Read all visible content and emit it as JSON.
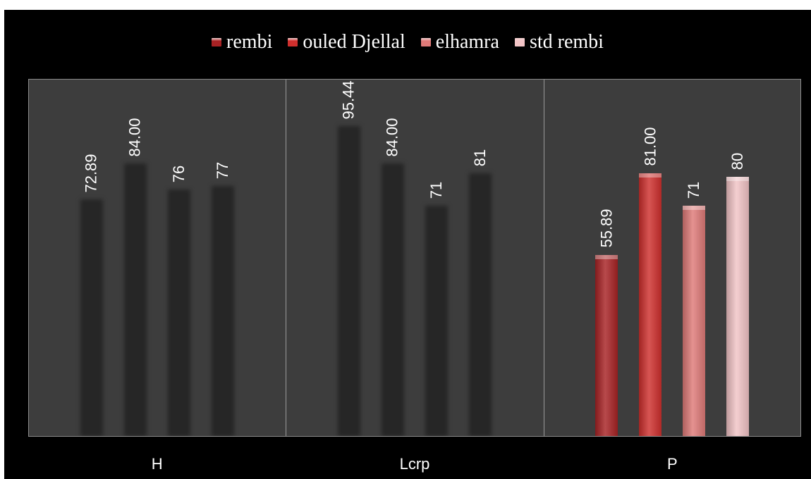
{
  "chart_data": {
    "type": "bar",
    "title": "",
    "xlabel": "",
    "ylabel": "",
    "categories": [
      "H",
      "Lcrp",
      "P"
    ],
    "series": [
      {
        "name": "rembi",
        "values": [
          72.89,
          95.44,
          55.89
        ],
        "labels": [
          "72.89",
          "95.44",
          "55.89"
        ],
        "color": "#a82224"
      },
      {
        "name": "ouled Djellal",
        "values": [
          84.0,
          84.0,
          81.0
        ],
        "labels": [
          "84.00",
          "84.00",
          "81.00"
        ],
        "color": "#cf2f2d"
      },
      {
        "name": "elhamra",
        "values": [
          76,
          71,
          71
        ],
        "labels": [
          "76",
          "71",
          "71"
        ],
        "color": "#df7a78"
      },
      {
        "name": "std rembi",
        "values": [
          77,
          81,
          80
        ],
        "labels": [
          "77",
          "81",
          "80"
        ],
        "color": "#f2c4c6"
      }
    ],
    "ylim": [
      0,
      110
    ],
    "grid": false,
    "legend": "top",
    "highlighted_category": "P",
    "faded_bar_color": "#262626",
    "plot_background": "#3d3d3d",
    "page_background": "#000000"
  }
}
